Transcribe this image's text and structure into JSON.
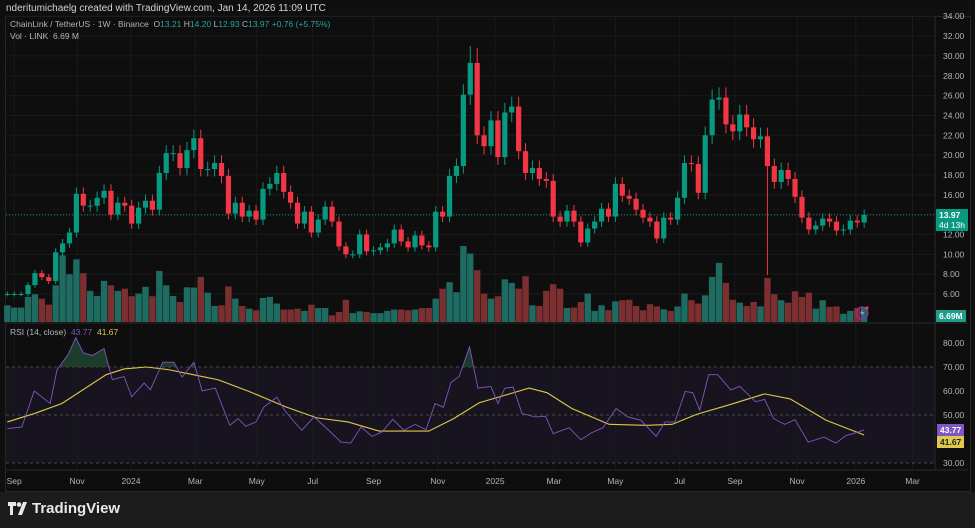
{
  "credit": "nderitumichaelg created with TradingView.com, Jan 14, 2026 11:09 UTC",
  "legend": {
    "symbol": "ChainLink / TetherUS · 1W · Binance",
    "o_label": "O",
    "o": "13.21",
    "h_label": "H",
    "h": "14.20",
    "l_label": "L",
    "l": "12.93",
    "c_label": "C",
    "c": "13.97",
    "change": "+0.76 (+5.75%)",
    "vol_label": "Vol · LINK",
    "vol": "6.69 M"
  },
  "rsi_legend": {
    "label": "RSI (14, close)",
    "rsi": "43.77",
    "ma": "41.67"
  },
  "badges": {
    "price": "13.97",
    "countdown": "4d 13h",
    "volume": "6.69M",
    "rsi": "43.77",
    "rsi_ma": "41.67"
  },
  "footer": {
    "brand": "TradingView"
  },
  "colors": {
    "up": "#089981",
    "down": "#f23645",
    "vol_up": "#1d6b61",
    "vol_down": "#7b2f30",
    "rsi": "#7e57c2",
    "rsi_ma": "#e0c84a"
  },
  "chart_data": [
    {
      "type": "candlestick",
      "title": "ChainLink / TetherUS · 1W · Binance",
      "x_unit": "week index (0 = early Sep 2023)",
      "y_axis_ticks": [
        34,
        32,
        30,
        28,
        26,
        24,
        22,
        20,
        18,
        16,
        12,
        10,
        8,
        6
      ],
      "ylim": [
        5,
        35
      ],
      "current_price": 13.97,
      "first_open": 6.0,
      "closes": [
        6.0,
        6.0,
        6.0,
        6.9,
        8.1,
        7.7,
        7.3,
        10.2,
        11.1,
        12.2,
        16.1,
        14.9,
        14.9,
        15.7,
        16.4,
        14.0,
        15.2,
        14.9,
        13.1,
        14.7,
        15.4,
        14.5,
        18.2,
        20.2,
        20.2,
        18.7,
        20.5,
        21.7,
        18.6,
        18.6,
        19.2,
        17.9,
        14.1,
        15.2,
        13.8,
        14.4,
        13.5,
        16.6,
        17.1,
        18.2,
        16.3,
        15.2,
        13.1,
        14.3,
        12.2,
        13.5,
        14.8,
        13.3,
        10.8,
        10.0,
        10.0,
        12.0,
        10.3,
        10.4,
        10.7,
        11.1,
        12.5,
        11.3,
        10.7,
        11.9,
        10.9,
        10.7,
        14.3,
        13.8,
        17.9,
        18.9,
        26.1,
        29.3,
        22.0,
        20.9,
        23.5,
        19.8,
        24.3,
        24.9,
        20.4,
        18.2,
        18.7,
        17.6,
        17.4,
        13.8,
        13.3,
        14.4,
        13.3,
        11.2,
        12.6,
        13.3,
        14.6,
        13.8,
        17.1,
        15.9,
        15.6,
        14.5,
        13.7,
        13.3,
        11.6,
        13.7,
        13.5,
        15.7,
        19.2,
        19.1,
        16.2,
        22.0,
        25.6,
        25.8,
        23.1,
        22.4,
        24.1,
        22.8,
        21.6,
        21.9,
        18.9,
        17.3,
        18.5,
        17.6,
        15.8,
        13.7,
        12.5,
        12.9,
        13.6,
        13.3,
        12.4,
        12.5,
        13.4,
        13.21,
        13.97
      ],
      "notable_extremes": [
        {
          "index": 110,
          "low": 7.9
        },
        {
          "index": 67,
          "high": 31.0
        },
        {
          "index": 68,
          "high": 30.8
        }
      ],
      "volume_millions": [
        7.5,
        6.5,
        6.5,
        11.3,
        12.5,
        10.5,
        7.8,
        16.5,
        30,
        21.5,
        28.2,
        22,
        14,
        11.7,
        18.5,
        16.5,
        14,
        15,
        11.6,
        12.8,
        15.8,
        11.6,
        23,
        16.5,
        11.7,
        9,
        15.6,
        15.5,
        20.3,
        13.2,
        7.2,
        7.5,
        16,
        10.5,
        7.2,
        6,
        5.3,
        10.8,
        11.3,
        8.3,
        5.6,
        5.6,
        6,
        5,
        7.8,
        6.3,
        6.3,
        3,
        4.5,
        10,
        4,
        4.8,
        4.5,
        4,
        4,
        5,
        5.6,
        5.6,
        5.3,
        5.6,
        6.3,
        6.3,
        10.5,
        15,
        17.9,
        13.4,
        34.2,
        30.8,
        23.3,
        12.8,
        10.5,
        11.6,
        19.2,
        17.6,
        15,
        20.6,
        7.5,
        7.2,
        14,
        17,
        15,
        6.3,
        6.5,
        9,
        12.8,
        5,
        7.5,
        5.3,
        9.3,
        9.8,
        10,
        7.2,
        5.3,
        8,
        7,
        5.7,
        5,
        7,
        12.8,
        9.8,
        8.3,
        12,
        20.3,
        26.6,
        17.6,
        10,
        8.7,
        7.2,
        9,
        7,
        19.8,
        12.5,
        9.8,
        8.7,
        13.8,
        11.3,
        13.2,
        6,
        9.8,
        6.8,
        7,
        3.7,
        5,
        6.3,
        6.69
      ],
      "time_labels": [
        {
          "label": "Sep",
          "week": 1
        },
        {
          "label": "Nov",
          "week": 10.1
        },
        {
          "label": "2024",
          "week": 17.9
        },
        {
          "label": "Mar",
          "week": 27.2
        },
        {
          "label": "May",
          "week": 36.1
        },
        {
          "label": "Jul",
          "week": 44.2
        },
        {
          "label": "Sep",
          "week": 53
        },
        {
          "label": "Nov",
          "week": 62.3
        },
        {
          "label": "2025",
          "week": 70.6
        },
        {
          "label": "Mar",
          "week": 79.1
        },
        {
          "label": "May",
          "week": 88
        },
        {
          "label": "Jul",
          "week": 97.3
        },
        {
          "label": "Sep",
          "week": 105.3
        },
        {
          "label": "Nov",
          "week": 114.3
        },
        {
          "label": "2026",
          "week": 122.8
        },
        {
          "label": "Mar",
          "week": 131
        }
      ]
    },
    {
      "type": "line",
      "title": "RSI (14, close)",
      "ylim": [
        25,
        85
      ],
      "y_axis_ticks": [
        80,
        70,
        60,
        50,
        30
      ],
      "bands": {
        "upper": 70,
        "middle": 50,
        "lower": 30
      },
      "series": [
        {
          "name": "RSI",
          "points": [
            [
              0,
              44.3
            ],
            [
              2.1,
              45
            ],
            [
              3.9,
              60
            ],
            [
              6.2,
              54.8
            ],
            [
              7.2,
              68.9
            ],
            [
              8.8,
              75.2
            ],
            [
              9.9,
              82.2
            ],
            [
              11,
              75.9
            ],
            [
              12.3,
              74.8
            ],
            [
              14,
              77.7
            ],
            [
              15.2,
              64.7
            ],
            [
              16.9,
              66
            ],
            [
              18,
              57.6
            ],
            [
              19.8,
              63.3
            ],
            [
              20.7,
              60.5
            ],
            [
              22.5,
              72
            ],
            [
              24.1,
              72
            ],
            [
              25.3,
              65.8
            ],
            [
              27,
              72
            ],
            [
              28.2,
              60
            ],
            [
              30.1,
              61.2
            ],
            [
              32.2,
              45.7
            ],
            [
              33.4,
              48.5
            ],
            [
              34.5,
              45.3
            ],
            [
              36,
              47.1
            ],
            [
              37.1,
              53.2
            ],
            [
              39,
              57.4
            ],
            [
              40.3,
              51.3
            ],
            [
              42.6,
              43.6
            ],
            [
              44.4,
              49.2
            ],
            [
              46,
              45
            ],
            [
              48.3,
              38.7
            ],
            [
              49.7,
              38.3
            ],
            [
              51.2,
              45
            ],
            [
              52.8,
              41.1
            ],
            [
              54.2,
              42.9
            ],
            [
              55.8,
              48.2
            ],
            [
              57.4,
              43.6
            ],
            [
              59,
              46.1
            ],
            [
              60.6,
              43.9
            ],
            [
              61.9,
              54.8
            ],
            [
              63.1,
              53.2
            ],
            [
              64.2,
              63.5
            ],
            [
              65.4,
              66.1
            ],
            [
              66.9,
              78.4
            ],
            [
              68.1,
              61.2
            ],
            [
              70,
              61.9
            ],
            [
              71,
              54.8
            ],
            [
              72,
              61.2
            ],
            [
              73.2,
              61.6
            ],
            [
              74.5,
              50.6
            ],
            [
              76.4,
              49.2
            ],
            [
              77.9,
              49.5
            ],
            [
              79,
              42.2
            ],
            [
              81.3,
              44.7
            ],
            [
              83,
              39.7
            ],
            [
              84.5,
              42.5
            ],
            [
              86.2,
              44.7
            ],
            [
              88.1,
              52.7
            ],
            [
              89.8,
              49.2
            ],
            [
              91.7,
              47.8
            ],
            [
              93.9,
              41.1
            ],
            [
              95.2,
              47.1
            ],
            [
              96.6,
              47.1
            ],
            [
              98.1,
              59.8
            ],
            [
              99.2,
              59.3
            ],
            [
              100.2,
              52
            ],
            [
              101.5,
              66.8
            ],
            [
              102.8,
              66.8
            ],
            [
              104.7,
              60.5
            ],
            [
              106,
              61.9
            ],
            [
              108.3,
              55.5
            ],
            [
              109.6,
              56.5
            ],
            [
              110.9,
              48.5
            ],
            [
              112.5,
              46.1
            ],
            [
              114,
              48.1
            ],
            [
              115.9,
              38.7
            ],
            [
              118.2,
              40.8
            ],
            [
              119.9,
              38.3
            ],
            [
              121.4,
              41.5
            ],
            [
              122.4,
              42.2
            ],
            [
              124,
              43.77
            ]
          ]
        },
        {
          "name": "RSI-based MA",
          "points": [
            [
              0,
              47.1
            ],
            [
              3.9,
              50.6
            ],
            [
              7.9,
              54.8
            ],
            [
              14.3,
              66.8
            ],
            [
              16.9,
              69.2
            ],
            [
              20.1,
              70
            ],
            [
              23.3,
              68.9
            ],
            [
              26.9,
              66.8
            ],
            [
              30.5,
              64.7
            ],
            [
              35,
              59.8
            ],
            [
              40.3,
              53.4
            ],
            [
              44.8,
              48.8
            ],
            [
              49.3,
              47.1
            ],
            [
              53.8,
              43.3
            ],
            [
              61,
              43.3
            ],
            [
              64.6,
              48.5
            ],
            [
              68.3,
              55.1
            ],
            [
              72.7,
              58.8
            ],
            [
              75.5,
              61.2
            ],
            [
              78.1,
              59.3
            ],
            [
              81.7,
              52.7
            ],
            [
              87.1,
              46.1
            ],
            [
              92.6,
              45.7
            ],
            [
              96.2,
              46.1
            ],
            [
              99.8,
              50.3
            ],
            [
              104.3,
              54.1
            ],
            [
              109.6,
              58.8
            ],
            [
              113.3,
              56.7
            ],
            [
              118.5,
              47.8
            ],
            [
              124,
              41.67
            ]
          ]
        }
      ]
    }
  ]
}
